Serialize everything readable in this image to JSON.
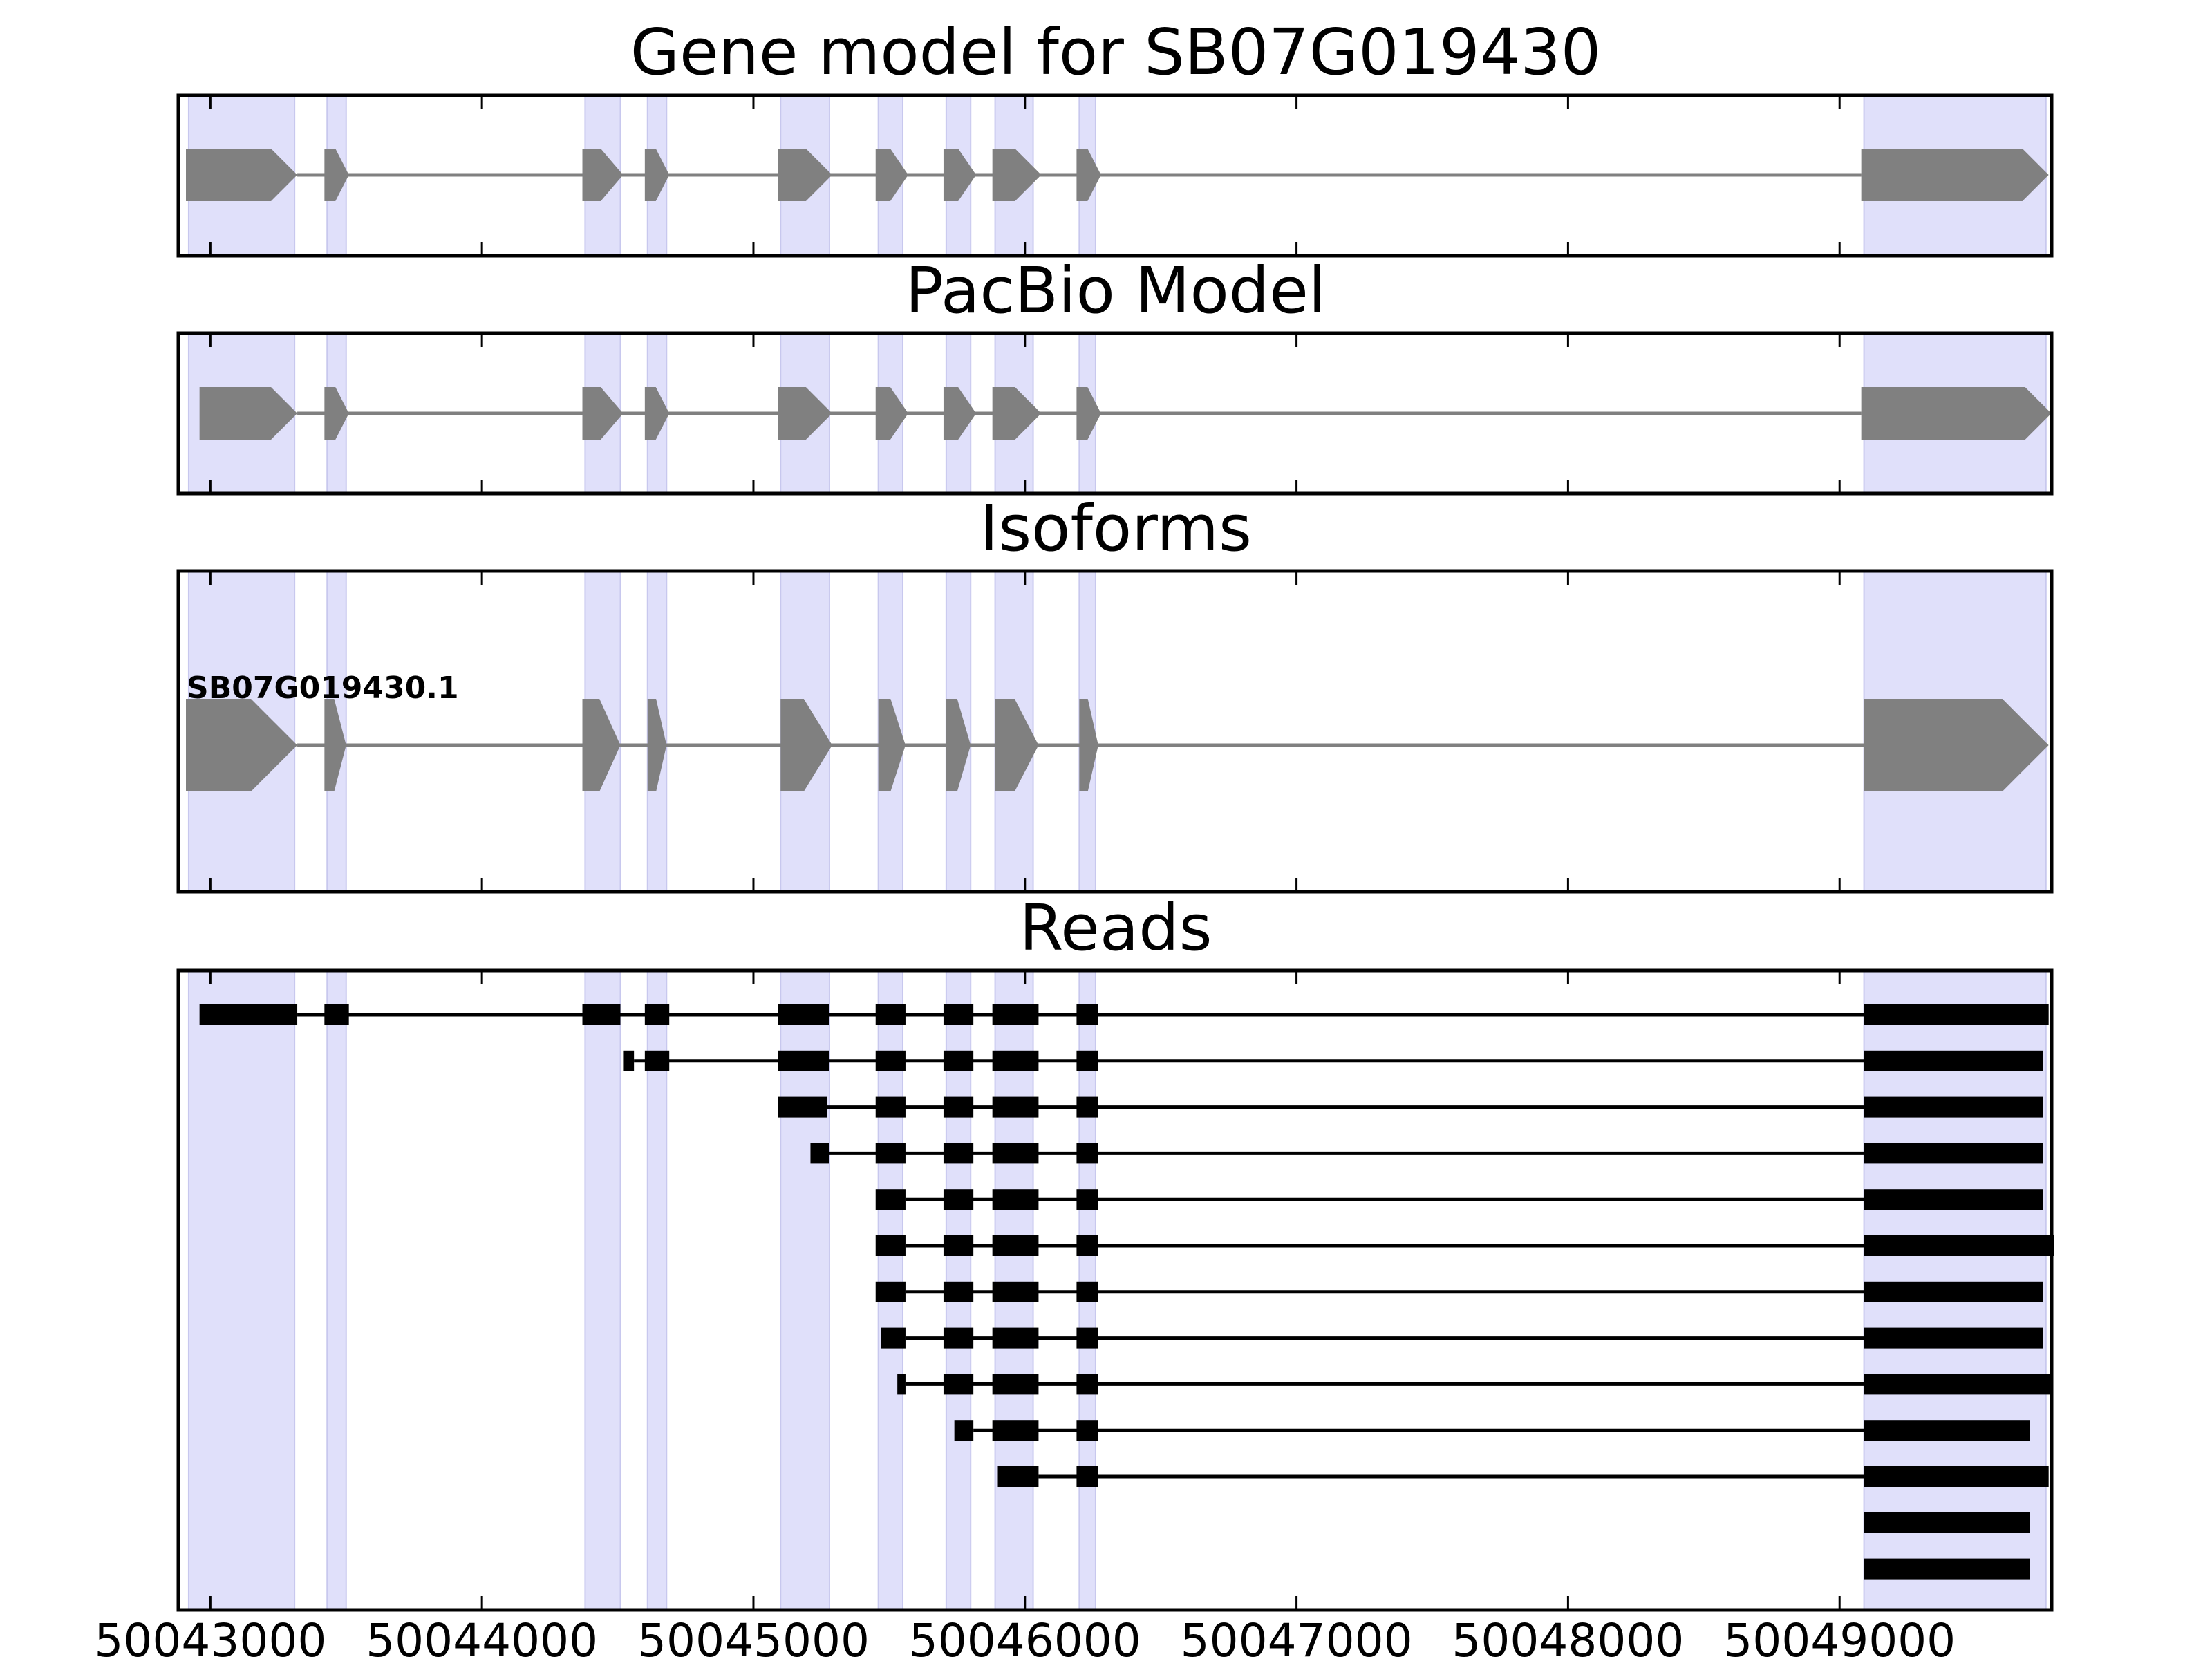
{
  "chart_data": {
    "type": "gene_model",
    "xlim": [
      50042882,
      50049781
    ],
    "x_ticks": [
      50043000,
      50044000,
      50045000,
      50046000,
      50047000,
      50048000,
      50049000
    ],
    "x_tick_labels": [
      "50043000",
      "50044000",
      "50045000",
      "50046000",
      "50047000",
      "50048000",
      "50049000"
    ],
    "highlight_color": "#e0e0fa",
    "exon_color": "#808080",
    "read_color": "#000000",
    "strand": "+",
    "highlight_regions": [
      [
        50042920,
        50043310
      ],
      [
        50043430,
        50043500
      ],
      [
        50044380,
        50044510
      ],
      [
        50044610,
        50044680
      ],
      [
        50045100,
        50045280
      ],
      [
        50045460,
        50045550
      ],
      [
        50045710,
        50045800
      ],
      [
        50045890,
        50046030
      ],
      [
        50046200,
        50046260
      ],
      [
        50049090,
        50049760
      ]
    ],
    "panels": [
      {
        "title": "Gene model for SB07G019430",
        "exons": [
          [
            50042910,
            50043320
          ],
          [
            50043420,
            50043510
          ],
          [
            50044370,
            50044520
          ],
          [
            50044600,
            50044690
          ],
          [
            50045090,
            50045290
          ],
          [
            50045450,
            50045570
          ],
          [
            50045700,
            50045820
          ],
          [
            50045880,
            50046060
          ],
          [
            50046190,
            50046280
          ],
          [
            50049080,
            50049770
          ]
        ]
      },
      {
        "title": "PacBio Model",
        "exons": [
          [
            50042960,
            50043320
          ],
          [
            50043420,
            50043510
          ],
          [
            50044370,
            50044520
          ],
          [
            50044600,
            50044690
          ],
          [
            50045090,
            50045290
          ],
          [
            50045450,
            50045570
          ],
          [
            50045700,
            50045820
          ],
          [
            50045880,
            50046060
          ],
          [
            50046190,
            50046280
          ],
          [
            50049080,
            50049780
          ]
        ]
      },
      {
        "title": "Isoforms",
        "isoforms": [
          {
            "name": "SB07G019430.1",
            "exons": [
              [
                50042910,
                50043320
              ],
              [
                50043420,
                50043500
              ],
              [
                50044370,
                50044510
              ],
              [
                50044610,
                50044680
              ],
              [
                50045100,
                50045290
              ],
              [
                50045460,
                50045560
              ],
              [
                50045710,
                50045800
              ],
              [
                50045890,
                50046050
              ],
              [
                50046200,
                50046270
              ],
              [
                50049090,
                50049770
              ]
            ]
          }
        ]
      },
      {
        "title": "Reads",
        "reads": [
          [
            [
              50042960,
              50043320
            ],
            [
              50043420,
              50043510
            ],
            [
              50044370,
              50044510
            ],
            [
              50044600,
              50044690
            ],
            [
              50045090,
              50045280
            ],
            [
              50045450,
              50045560
            ],
            [
              50045700,
              50045810
            ],
            [
              50045880,
              50046050
            ],
            [
              50046190,
              50046270
            ],
            [
              50049090,
              50049770
            ]
          ],
          [
            [
              50044520,
              50044560
            ],
            [
              50044600,
              50044690
            ],
            [
              50045090,
              50045280
            ],
            [
              50045450,
              50045560
            ],
            [
              50045700,
              50045810
            ],
            [
              50045880,
              50046050
            ],
            [
              50046190,
              50046270
            ],
            [
              50049090,
              50049750
            ]
          ],
          [
            [
              50045090,
              50045270
            ],
            [
              50045450,
              50045560
            ],
            [
              50045700,
              50045810
            ],
            [
              50045880,
              50046050
            ],
            [
              50046190,
              50046270
            ],
            [
              50049090,
              50049750
            ]
          ],
          [
            [
              50045210,
              50045280
            ],
            [
              50045450,
              50045560
            ],
            [
              50045700,
              50045810
            ],
            [
              50045880,
              50046050
            ],
            [
              50046190,
              50046270
            ],
            [
              50049090,
              50049750
            ]
          ],
          [
            [
              50045450,
              50045560
            ],
            [
              50045700,
              50045810
            ],
            [
              50045880,
              50046050
            ],
            [
              50046190,
              50046270
            ],
            [
              50049090,
              50049750
            ]
          ],
          [
            [
              50045450,
              50045560
            ],
            [
              50045700,
              50045810
            ],
            [
              50045880,
              50046050
            ],
            [
              50046190,
              50046270
            ],
            [
              50049090,
              50049790
            ]
          ],
          [
            [
              50045450,
              50045560
            ],
            [
              50045700,
              50045810
            ],
            [
              50045880,
              50046050
            ],
            [
              50046190,
              50046270
            ],
            [
              50049090,
              50049750
            ]
          ],
          [
            [
              50045470,
              50045560
            ],
            [
              50045700,
              50045810
            ],
            [
              50045880,
              50046050
            ],
            [
              50046190,
              50046270
            ],
            [
              50049090,
              50049750
            ]
          ],
          [
            [
              50045530,
              50045560
            ],
            [
              50045700,
              50045810
            ],
            [
              50045880,
              50046050
            ],
            [
              50046190,
              50046270
            ],
            [
              50049090,
              50049780
            ]
          ],
          [
            [
              50045740,
              50045810
            ],
            [
              50045880,
              50046050
            ],
            [
              50046190,
              50046270
            ],
            [
              50049090,
              50049700
            ]
          ],
          [
            [
              50045900,
              50046050
            ],
            [
              50046190,
              50046270
            ],
            [
              50049090,
              50049770
            ]
          ],
          [
            [
              50049090,
              50049700
            ]
          ],
          [
            [
              50049090,
              50049700
            ]
          ]
        ]
      }
    ]
  }
}
